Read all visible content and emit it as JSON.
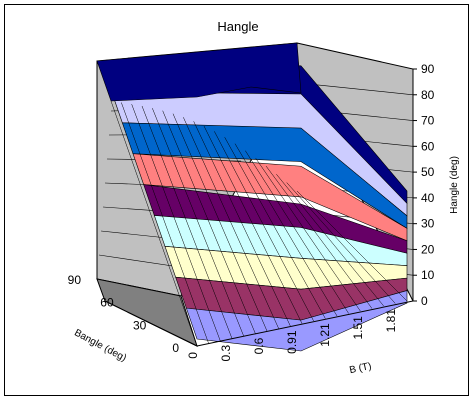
{
  "chart_data": {
    "type": "surface",
    "title": "Hangle",
    "xlabel": "B (T)",
    "ylabel": "Bangle (deg)",
    "zlabel": "Hangle (deg)",
    "x_ticks": [
      "0",
      "0.3",
      "0.6",
      "0.91",
      "1.21",
      "1.51",
      "1.81"
    ],
    "y_ticks": [
      "0",
      "30",
      "60",
      "90"
    ],
    "z_ticks": [
      "0",
      "10",
      "20",
      "30",
      "40",
      "50",
      "60",
      "70",
      "80",
      "90"
    ],
    "zlim": [
      0,
      90
    ],
    "band_colors": [
      "#9999ff",
      "#993366",
      "#ffffcc",
      "#ccffff",
      "#660066",
      "#ff8080",
      "#0066cc",
      "#ccccff",
      "#000080"
    ],
    "surface_rows": [
      {
        "bangle": 0,
        "hangle": [
          5,
          5,
          5,
          7,
          10,
          8,
          6
        ]
      },
      {
        "bangle": 30,
        "hangle": [
          30,
          30,
          30,
          33,
          36,
          34,
          32
        ]
      },
      {
        "bangle": 60,
        "hangle": [
          60,
          60,
          60,
          50,
          42,
          38,
          36
        ]
      },
      {
        "bangle": 90,
        "hangle": [
          90,
          90,
          90,
          75,
          48,
          42,
          40
        ]
      }
    ]
  }
}
